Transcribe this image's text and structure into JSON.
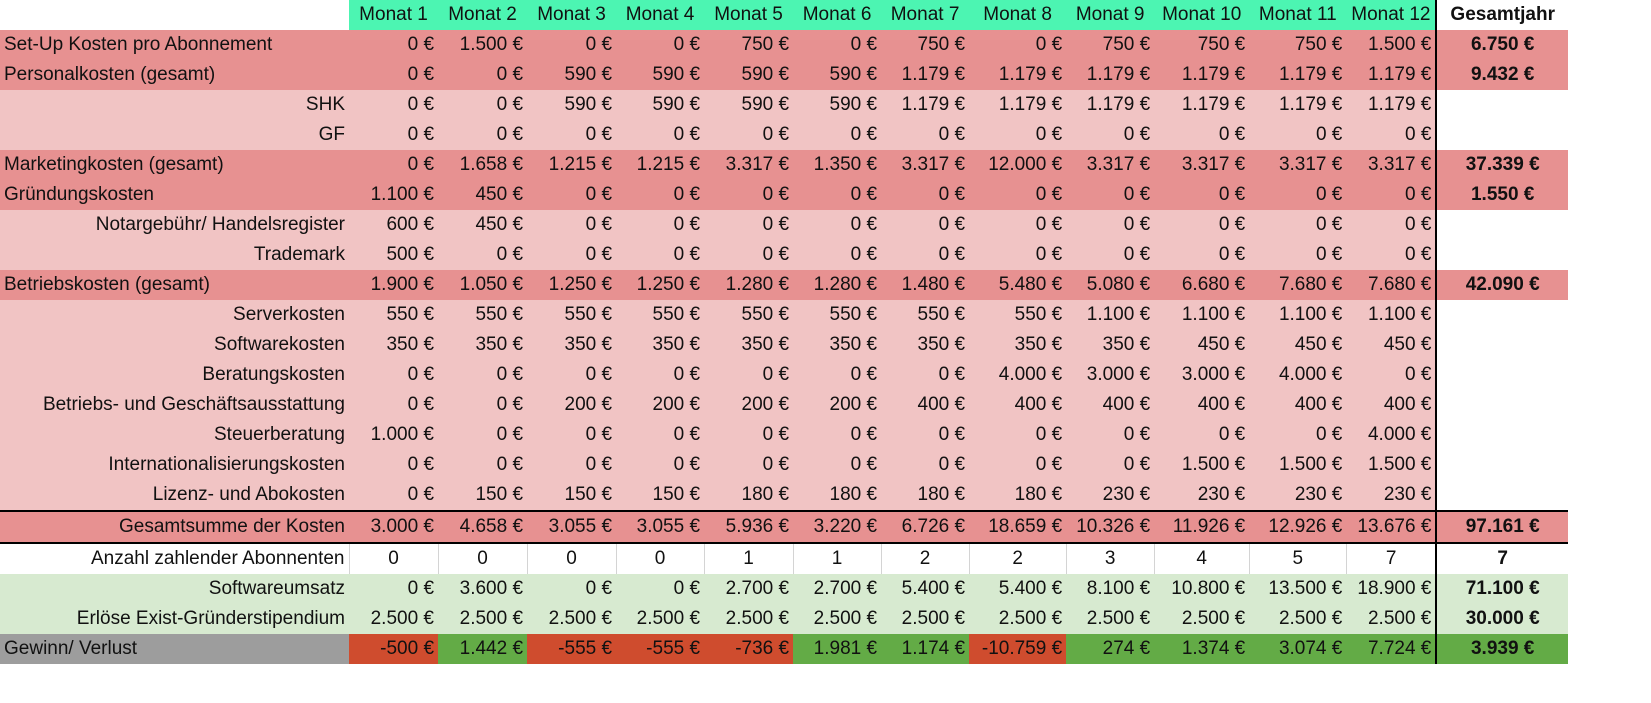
{
  "header": {
    "months": [
      "Monat 1",
      "Monat 2",
      "Monat 3",
      "Monat 4",
      "Monat 5",
      "Monat 6",
      "Monat 7",
      "Monat 8",
      "Monat 9",
      "Monat 10",
      "Monat 11",
      "Monat 12"
    ],
    "total": "Gesamtjahr"
  },
  "rows": [
    {
      "label": "Set-Up Kosten pro Abonnement",
      "type": "main",
      "values": [
        "0 €",
        "1.500 €",
        "0 €",
        "0 €",
        "750 €",
        "0 €",
        "750 €",
        "0 €",
        "750 €",
        "750 €",
        "750 €",
        "1.500 €"
      ],
      "total": "6.750 €"
    },
    {
      "label": "Personalkosten (gesamt)",
      "type": "main",
      "values": [
        "0 €",
        "0 €",
        "590 €",
        "590 €",
        "590 €",
        "590 €",
        "1.179 €",
        "1.179 €",
        "1.179 €",
        "1.179 €",
        "1.179 €",
        "1.179 €"
      ],
      "total": "9.432 €"
    },
    {
      "label": "SHK",
      "type": "sub",
      "values": [
        "0 €",
        "0 €",
        "590 €",
        "590 €",
        "590 €",
        "590 €",
        "1.179 €",
        "1.179 €",
        "1.179 €",
        "1.179 €",
        "1.179 €",
        "1.179 €"
      ],
      "total": ""
    },
    {
      "label": "GF",
      "type": "sub",
      "values": [
        "0 €",
        "0 €",
        "0 €",
        "0 €",
        "0 €",
        "0 €",
        "0 €",
        "0 €",
        "0 €",
        "0 €",
        "0 €",
        "0 €"
      ],
      "total": ""
    },
    {
      "label": "Marketingkosten (gesamt)",
      "type": "main",
      "values": [
        "0 €",
        "1.658 €",
        "1.215 €",
        "1.215 €",
        "3.317 €",
        "1.350 €",
        "3.317 €",
        "12.000 €",
        "3.317 €",
        "3.317 €",
        "3.317 €",
        "3.317 €"
      ],
      "total": "37.339 €"
    },
    {
      "label": "Gründungskosten",
      "type": "main",
      "values": [
        "1.100 €",
        "450 €",
        "0 €",
        "0 €",
        "0 €",
        "0 €",
        "0 €",
        "0 €",
        "0 €",
        "0 €",
        "0 €",
        "0 €"
      ],
      "total": "1.550 €"
    },
    {
      "label": "Notargebühr/ Handelsregister",
      "type": "sub",
      "values": [
        "600 €",
        "450 €",
        "0 €",
        "0 €",
        "0 €",
        "0 €",
        "0 €",
        "0 €",
        "0 €",
        "0 €",
        "0 €",
        "0 €"
      ],
      "total": ""
    },
    {
      "label": "Trademark",
      "type": "sub",
      "values": [
        "500 €",
        "0 €",
        "0 €",
        "0 €",
        "0 €",
        "0 €",
        "0 €",
        "0 €",
        "0 €",
        "0 €",
        "0 €",
        "0 €"
      ],
      "total": ""
    },
    {
      "label": "Betriebskosten (gesamt)",
      "type": "main",
      "values": [
        "1.900 €",
        "1.050 €",
        "1.250 €",
        "1.250 €",
        "1.280 €",
        "1.280 €",
        "1.480 €",
        "5.480 €",
        "5.080 €",
        "6.680 €",
        "7.680 €",
        "7.680 €"
      ],
      "total": "42.090 €"
    },
    {
      "label": "Serverkosten",
      "type": "sub",
      "values": [
        "550 €",
        "550 €",
        "550 €",
        "550 €",
        "550 €",
        "550 €",
        "550 €",
        "550 €",
        "1.100 €",
        "1.100 €",
        "1.100 €",
        "1.100 €"
      ],
      "total": ""
    },
    {
      "label": "Softwarekosten",
      "type": "sub",
      "values": [
        "350 €",
        "350 €",
        "350 €",
        "350 €",
        "350 €",
        "350 €",
        "350 €",
        "350 €",
        "350 €",
        "450 €",
        "450 €",
        "450 €"
      ],
      "total": ""
    },
    {
      "label": "Beratungskosten",
      "type": "sub",
      "values": [
        "0 €",
        "0 €",
        "0 €",
        "0 €",
        "0 €",
        "0 €",
        "0 €",
        "4.000 €",
        "3.000 €",
        "3.000 €",
        "4.000 €",
        "0 €"
      ],
      "total": ""
    },
    {
      "label": "Betriebs- und Geschäftsausstattung",
      "type": "sub",
      "values": [
        "0 €",
        "0 €",
        "200 €",
        "200 €",
        "200 €",
        "200 €",
        "400 €",
        "400 €",
        "400 €",
        "400 €",
        "400 €",
        "400 €"
      ],
      "total": ""
    },
    {
      "label": "Steuerberatung",
      "type": "sub",
      "values": [
        "1.000 €",
        "0 €",
        "0 €",
        "0 €",
        "0 €",
        "0 €",
        "0 €",
        "0 €",
        "0 €",
        "0 €",
        "0 €",
        "4.000 €"
      ],
      "total": ""
    },
    {
      "label": "Internationalisierungskosten",
      "type": "sub",
      "values": [
        "0 €",
        "0 €",
        "0 €",
        "0 €",
        "0 €",
        "0 €",
        "0 €",
        "0 €",
        "0 €",
        "1.500 €",
        "1.500 €",
        "1.500 €"
      ],
      "total": ""
    },
    {
      "label": "Lizenz- und Abokosten",
      "type": "sub",
      "values": [
        "0 €",
        "150 €",
        "150 €",
        "150 €",
        "180 €",
        "180 €",
        "180 €",
        "180 €",
        "230 €",
        "230 €",
        "230 €",
        "230 €"
      ],
      "total": ""
    },
    {
      "label": "Gesamtsumme der Kosten",
      "type": "sum",
      "values": [
        "3.000 €",
        "4.658 €",
        "3.055 €",
        "3.055 €",
        "5.936 €",
        "3.220 €",
        "6.726 €",
        "18.659 €",
        "10.326 €",
        "11.926 €",
        "12.926 €",
        "13.676 €"
      ],
      "total": "97.161 €"
    },
    {
      "label": "Anzahl zahlender Abonnenten",
      "type": "count",
      "values": [
        "0",
        "0",
        "0",
        "0",
        "1",
        "1",
        "2",
        "2",
        "3",
        "4",
        "5",
        "7"
      ],
      "total": "7"
    },
    {
      "label": "Softwareumsatz",
      "type": "rev",
      "values": [
        "0 €",
        "3.600 €",
        "0 €",
        "0 €",
        "2.700 €",
        "2.700 €",
        "5.400 €",
        "5.400 €",
        "8.100 €",
        "10.800 €",
        "13.500 €",
        "18.900 €"
      ],
      "total": "71.100 €"
    },
    {
      "label": "Erlöse Exist-Gründerstipendium",
      "type": "rev",
      "values": [
        "2.500 €",
        "2.500 €",
        "2.500 €",
        "2.500 €",
        "2.500 €",
        "2.500 €",
        "2.500 €",
        "2.500 €",
        "2.500 €",
        "2.500 €",
        "2.500 €",
        "2.500 €"
      ],
      "total": "30.000 €"
    },
    {
      "label": "Gewinn/ Verlust",
      "type": "profit",
      "values": [
        "-500 €",
        "1.442 €",
        "-555 €",
        "-555 €",
        "-736 €",
        "1.981 €",
        "1.174 €",
        "-10.759 €",
        "274 €",
        "1.374 €",
        "3.074 €",
        "7.724 €"
      ],
      "total": "3.939 €"
    }
  ],
  "colors": {
    "header_green": "#4cf5b2",
    "cost_main": "#e79191",
    "cost_sub": "#f1c4c4",
    "revenue": "#d7ead0",
    "loss": "#cf4c2e",
    "profit": "#63ab46",
    "profit_label": "#9d9d9d"
  }
}
